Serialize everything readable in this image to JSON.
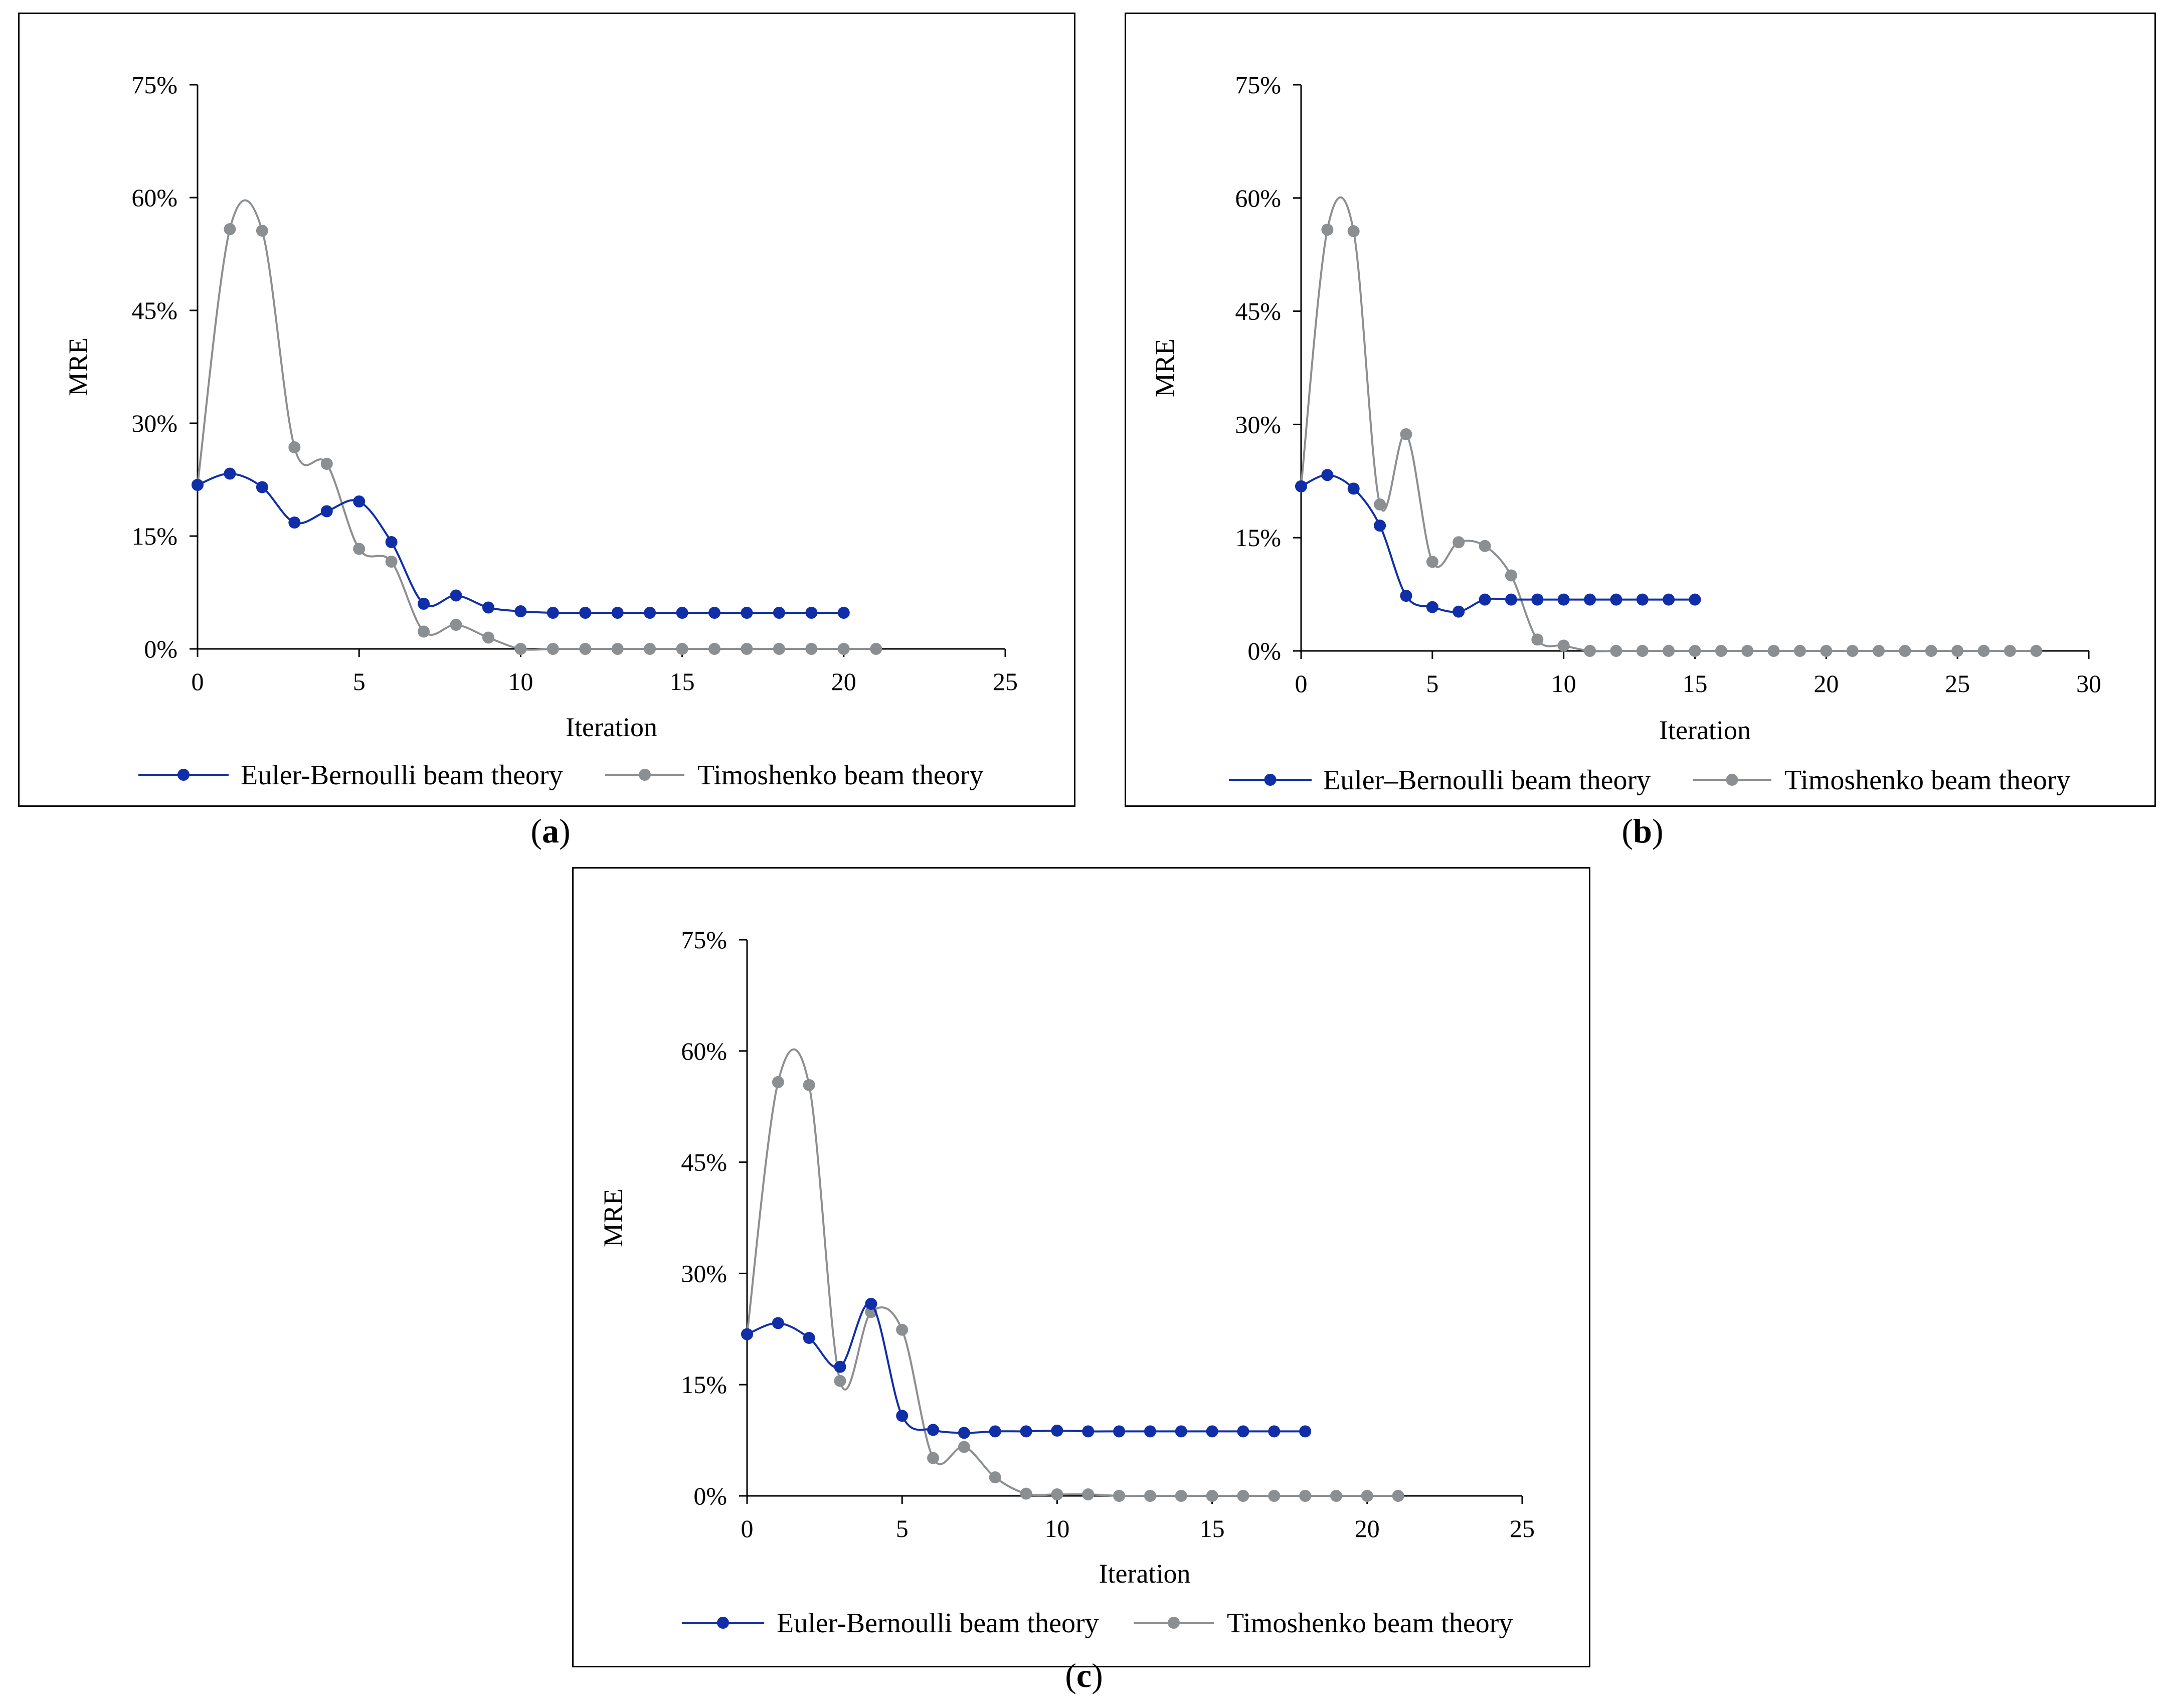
{
  "colors": {
    "euler": "#0F2EA8",
    "timoshenko": "#8C8F92",
    "axis": "#000000"
  },
  "captions": [
    {
      "open": "(",
      "letter": "a",
      "close": ")"
    },
    {
      "open": "(",
      "letter": "b",
      "close": ")"
    },
    {
      "open": "(",
      "letter": "c",
      "close": ")"
    }
  ],
  "chart_data": [
    {
      "type": "line",
      "xlabel": "Iteration",
      "ylabel": "MRE",
      "xlim": [
        0,
        25
      ],
      "ylim": [
        0,
        75
      ],
      "x_ticks": [
        0,
        5,
        10,
        15,
        20,
        25
      ],
      "y_ticks": [
        "0%",
        "15%",
        "30%",
        "45%",
        "60%",
        "75%"
      ],
      "legend_placement": "bottom",
      "series": [
        {
          "name": "Euler-Bernoulli beam theory",
          "color": "#0F2EA8",
          "x": [
            0,
            1,
            2,
            3,
            4,
            5,
            6,
            7,
            8,
            9,
            10,
            11,
            12,
            13,
            14,
            15,
            16,
            17,
            18,
            19,
            20
          ],
          "y": [
            21.8,
            23.3,
            21.5,
            16.8,
            18.3,
            19.6,
            14.2,
            6.0,
            7.1,
            5.5,
            5.0,
            4.8,
            4.8,
            4.8,
            4.8,
            4.8,
            4.8,
            4.8,
            4.8,
            4.8,
            4.8
          ]
        },
        {
          "name": "Timoshenko beam theory",
          "color": "#8C8F92",
          "x": [
            0,
            1,
            2,
            3,
            4,
            5,
            6,
            7,
            8,
            9,
            10,
            11,
            12,
            13,
            14,
            15,
            16,
            17,
            18,
            19,
            20,
            21
          ],
          "y": [
            21.8,
            55.8,
            55.6,
            26.8,
            24.6,
            13.3,
            11.6,
            2.3,
            3.2,
            1.5,
            0,
            0,
            0,
            0,
            0,
            0,
            0,
            0,
            0,
            0,
            0,
            0
          ]
        }
      ]
    },
    {
      "type": "line",
      "xlabel": "Iteration",
      "ylabel": "MRE",
      "xlim": [
        0,
        30
      ],
      "ylim": [
        0,
        75
      ],
      "x_ticks": [
        0,
        5,
        10,
        15,
        20,
        25,
        30
      ],
      "y_ticks": [
        "0%",
        "15%",
        "30%",
        "45%",
        "60%",
        "75%"
      ],
      "legend_placement": "bottom",
      "series": [
        {
          "name": "Euler–Bernoulli beam theory",
          "color": "#0F2EA8",
          "x": [
            0,
            1,
            2,
            3,
            4,
            5,
            6,
            7,
            8,
            9,
            10,
            11,
            12,
            13,
            14,
            15
          ],
          "y": [
            21.8,
            23.3,
            21.5,
            16.6,
            7.3,
            5.8,
            5.2,
            6.8,
            6.8,
            6.8,
            6.8,
            6.8,
            6.8,
            6.8,
            6.8,
            6.8
          ]
        },
        {
          "name": "Timoshenko beam theory",
          "color": "#8C8F92",
          "x": [
            0,
            1,
            2,
            3,
            4,
            5,
            6,
            7,
            8,
            9,
            10,
            11,
            12,
            13,
            14,
            15,
            16,
            17,
            18,
            19,
            20,
            21,
            22,
            23,
            24,
            25,
            26,
            27,
            28
          ],
          "y": [
            21.8,
            55.8,
            55.6,
            19.4,
            28.7,
            11.8,
            14.4,
            13.9,
            10.0,
            1.5,
            0.7,
            0,
            0,
            0,
            0,
            0,
            0,
            0,
            0,
            0,
            0,
            0,
            0,
            0,
            0,
            0,
            0,
            0,
            0
          ]
        }
      ]
    },
    {
      "type": "line",
      "xlabel": "Iteration",
      "ylabel": "MRE",
      "xlim": [
        0,
        25
      ],
      "ylim": [
        0,
        75
      ],
      "x_ticks": [
        0,
        5,
        10,
        15,
        20,
        25
      ],
      "y_ticks": [
        "0%",
        "15%",
        "30%",
        "45%",
        "60%",
        "75%"
      ],
      "legend_placement": "bottom",
      "series": [
        {
          "name": "Euler-Bernoulli beam theory",
          "color": "#0F2EA8",
          "x": [
            0,
            1,
            2,
            3,
            4,
            5,
            6,
            7,
            8,
            9,
            10,
            11,
            12,
            13,
            14,
            15,
            16,
            17,
            18
          ],
          "y": [
            21.8,
            23.3,
            21.3,
            17.4,
            25.9,
            10.8,
            8.9,
            8.5,
            8.7,
            8.7,
            8.8,
            8.7,
            8.7,
            8.7,
            8.7,
            8.7,
            8.7,
            8.7,
            8.7
          ]
        },
        {
          "name": "Timoshenko beam theory",
          "color": "#8C8F92",
          "x": [
            0,
            1,
            2,
            3,
            4,
            5,
            6,
            7,
            8,
            9,
            10,
            11,
            12,
            13,
            14,
            15,
            16,
            17,
            18,
            19,
            20,
            21
          ],
          "y": [
            21.8,
            55.8,
            55.4,
            15.5,
            24.8,
            22.4,
            5.1,
            6.6,
            2.5,
            0.3,
            0.2,
            0.2,
            0,
            0,
            0,
            0,
            0,
            0,
            0,
            0,
            0,
            0
          ]
        }
      ]
    }
  ]
}
